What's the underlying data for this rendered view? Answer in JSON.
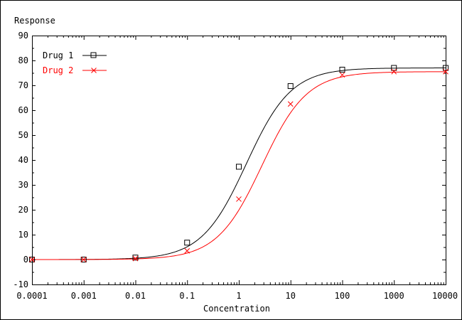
{
  "chart_data": {
    "type": "line",
    "xlabel": "Concentration",
    "ylabel": "Response",
    "xscale": "log",
    "xlim": [
      0.0001,
      10000
    ],
    "ylim": [
      -10,
      90
    ],
    "x_ticks": [
      0.0001,
      0.001,
      0.01,
      0.1,
      1,
      10,
      100,
      1000,
      10000
    ],
    "x_tick_labels": [
      "0.0001",
      "0.001",
      "0.01",
      "0.1",
      "1",
      "10",
      "100",
      "1000",
      "10000"
    ],
    "y_ticks": [
      -10,
      0,
      10,
      20,
      30,
      40,
      50,
      60,
      70,
      80,
      90
    ],
    "y_tick_labels": [
      "-10",
      "0",
      "10",
      "20",
      "30",
      "40",
      "50",
      "60",
      "70",
      "80",
      "90"
    ],
    "grid": false,
    "legend_position": "top-left",
    "series": [
      {
        "name": "Drug 1",
        "color": "#000000",
        "marker": "square",
        "x": [
          0.0001,
          0.001,
          0.01,
          0.1,
          1,
          10,
          100,
          1000,
          10000
        ],
        "y": [
          0,
          0,
          0.8,
          6.8,
          37.3,
          69.7,
          76.3,
          77,
          77
        ],
        "fit": {
          "bottom": 0,
          "top": 77,
          "ec50": 1.4,
          "hill": 1.0
        }
      },
      {
        "name": "Drug 2",
        "color": "#ff0000",
        "marker": "x",
        "x": [
          0.0001,
          0.001,
          0.01,
          0.1,
          1,
          10,
          100,
          1000,
          10000
        ],
        "y": [
          0,
          0,
          0.4,
          3.5,
          24.3,
          62.5,
          74.2,
          75.5,
          75.5
        ],
        "fit": {
          "bottom": 0,
          "top": 75.5,
          "ec50": 2.8,
          "hill": 1.0
        }
      }
    ]
  }
}
